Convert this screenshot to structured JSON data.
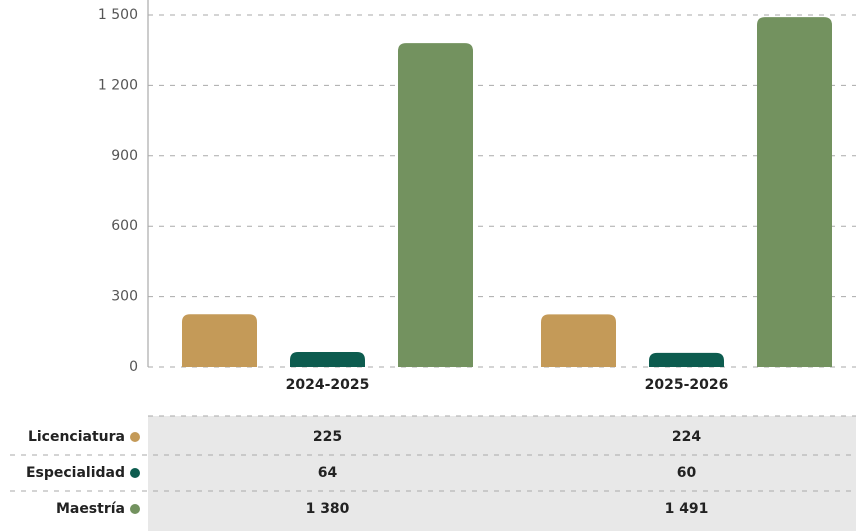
{
  "chart_data": {
    "type": "bar",
    "categories": [
      "2024-2025",
      "2025-2026"
    ],
    "series": [
      {
        "name": "Licenciatura",
        "color": "#c49a58",
        "values": [
          225,
          224
        ],
        "value_labels": [
          "225",
          "224"
        ]
      },
      {
        "name": "Especialidad",
        "color": "#0d5c4f",
        "values": [
          64,
          60
        ],
        "value_labels": [
          "64",
          "60"
        ]
      },
      {
        "name": "Maestría",
        "color": "#73925f",
        "values": [
          1380,
          1491
        ],
        "value_labels": [
          "1 380",
          "1 491"
        ]
      }
    ],
    "ylim": [
      0,
      1500
    ],
    "yticks": [
      0,
      300,
      600,
      900,
      {
        "value": 1200,
        "label": "1 200"
      },
      {
        "value": 1500,
        "label": "1 500"
      }
    ],
    "grid": true
  }
}
